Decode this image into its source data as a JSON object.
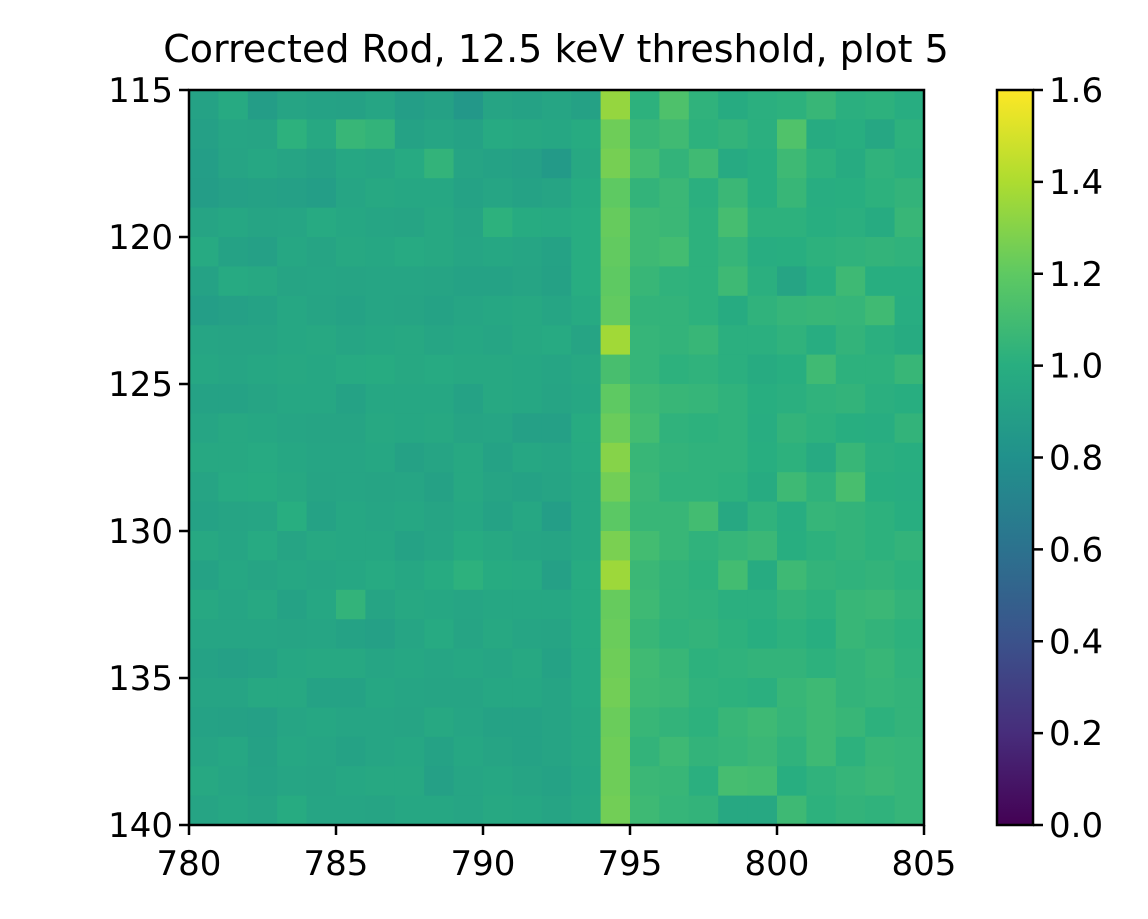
{
  "chart_data": {
    "type": "heatmap",
    "title": "Corrected Rod, 12.5 keV threshold, plot 5",
    "xlabel": "",
    "ylabel": "",
    "colormap": "viridis",
    "xlim": [
      780,
      805
    ],
    "ylim": [
      140,
      115
    ],
    "x_ticks": [
      "780",
      "785",
      "790",
      "795",
      "800",
      "805"
    ],
    "y_ticks": [
      "115",
      "120",
      "125",
      "130",
      "135",
      "140"
    ],
    "colorbar": {
      "range": [
        0.0,
        1.6
      ],
      "ticks": [
        "0.0",
        "0.2",
        "0.4",
        "0.6",
        "0.8",
        "1.0",
        "1.2",
        "1.4",
        "1.6"
      ]
    },
    "x_start": 780,
    "y_start": 115,
    "values": [
      [
        0.92,
        0.97,
        0.88,
        0.93,
        0.92,
        0.91,
        0.94,
        0.89,
        0.91,
        0.85,
        0.93,
        0.92,
        0.94,
        0.91,
        1.34,
        1.02,
        1.14,
        1.03,
        0.98,
        1.01,
        1.02,
        1.06,
        1.01,
        1.02,
        0.99
      ],
      [
        0.9,
        0.94,
        0.93,
        1.02,
        0.96,
        1.06,
        1.04,
        0.92,
        0.94,
        0.92,
        0.97,
        0.96,
        0.95,
        0.98,
        1.24,
        1.06,
        1.09,
        1.02,
        1.04,
        1.01,
        1.15,
        0.98,
        1.0,
        0.95,
        1.02
      ],
      [
        0.89,
        0.93,
        0.95,
        0.93,
        0.91,
        0.95,
        0.94,
        0.97,
        1.04,
        0.93,
        0.92,
        0.9,
        0.86,
        0.96,
        1.26,
        1.1,
        1.04,
        1.09,
        0.97,
        1.0,
        1.08,
        1.02,
        0.98,
        1.03,
        1.01
      ],
      [
        0.88,
        0.9,
        0.91,
        0.9,
        0.89,
        0.94,
        0.96,
        0.95,
        0.95,
        0.92,
        0.94,
        0.92,
        0.93,
        0.98,
        1.2,
        1.04,
        1.07,
        1.01,
        1.07,
        1.0,
        1.06,
        0.99,
        1.0,
        1.02,
        1.04
      ],
      [
        0.93,
        0.95,
        0.93,
        0.94,
        0.97,
        0.95,
        0.94,
        0.93,
        0.96,
        0.93,
        1.02,
        0.98,
        0.97,
        0.99,
        1.22,
        1.08,
        1.07,
        1.02,
        1.11,
        1.02,
        1.02,
        1.0,
        1.01,
        0.98,
        1.06
      ],
      [
        0.97,
        0.92,
        0.9,
        0.95,
        0.93,
        0.96,
        0.95,
        0.97,
        0.96,
        0.94,
        0.95,
        0.94,
        0.92,
        0.99,
        1.21,
        1.08,
        1.1,
        1.02,
        1.05,
        0.99,
        1.0,
        1.02,
        1.03,
        1.04,
        1.03
      ],
      [
        0.92,
        0.97,
        0.96,
        0.93,
        0.94,
        0.93,
        0.94,
        0.94,
        0.93,
        0.92,
        0.92,
        0.93,
        0.91,
        0.99,
        1.2,
        1.06,
        1.03,
        1.02,
        1.08,
        1.01,
        0.93,
        1.0,
        1.08,
        1.0,
        1.0
      ],
      [
        0.89,
        0.9,
        0.92,
        0.95,
        0.93,
        0.92,
        0.94,
        0.93,
        0.92,
        0.94,
        0.95,
        0.96,
        0.94,
        0.97,
        1.21,
        1.04,
        1.04,
        1.02,
        0.98,
        1.03,
        1.05,
        1.06,
        1.05,
        1.09,
        0.99
      ],
      [
        0.94,
        0.93,
        0.93,
        0.95,
        0.96,
        0.94,
        0.95,
        0.96,
        0.94,
        0.95,
        0.94,
        0.96,
        0.97,
        0.93,
        1.37,
        1.05,
        1.04,
        1.06,
        1.01,
        1.01,
        1.03,
        0.99,
        1.04,
        1.01,
        0.98
      ],
      [
        0.95,
        0.94,
        0.95,
        0.96,
        0.95,
        0.97,
        0.98,
        0.96,
        0.97,
        0.96,
        0.96,
        0.95,
        0.94,
        0.96,
        1.12,
        1.05,
        1.02,
        1.03,
        1.01,
        0.98,
        1.0,
        1.09,
        1.02,
        1.02,
        1.06
      ],
      [
        0.92,
        0.92,
        0.93,
        0.95,
        0.95,
        0.92,
        0.95,
        0.95,
        0.95,
        0.92,
        0.96,
        0.95,
        0.93,
        0.95,
        1.2,
        1.08,
        1.06,
        1.05,
        1.03,
        1.0,
        1.01,
        1.03,
        1.04,
        1.01,
        1.0
      ],
      [
        0.94,
        0.96,
        0.95,
        0.94,
        0.93,
        0.93,
        0.96,
        0.95,
        0.96,
        0.93,
        0.94,
        0.9,
        0.9,
        0.98,
        1.23,
        1.1,
        1.03,
        1.02,
        1.03,
        0.99,
        1.04,
        1.02,
        1.0,
        0.99,
        1.04
      ],
      [
        0.96,
        0.96,
        0.97,
        0.95,
        0.94,
        0.94,
        0.95,
        0.91,
        0.93,
        0.96,
        0.92,
        0.95,
        0.94,
        0.97,
        1.3,
        1.06,
        1.04,
        1.03,
        1.03,
        1.0,
        1.02,
        0.97,
        1.06,
        1.01,
        1.0
      ],
      [
        0.93,
        0.97,
        0.98,
        0.96,
        0.93,
        0.94,
        0.93,
        0.94,
        0.91,
        0.96,
        0.93,
        0.92,
        0.93,
        0.96,
        1.25,
        1.07,
        1.03,
        1.03,
        1.02,
        0.98,
        1.08,
        1.03,
        1.12,
        1.0,
        0.99
      ],
      [
        0.92,
        0.93,
        0.94,
        1.0,
        0.92,
        0.95,
        0.94,
        0.95,
        0.93,
        0.95,
        0.92,
        0.95,
        0.89,
        0.96,
        1.19,
        1.06,
        1.06,
        1.1,
        0.96,
        1.03,
        0.99,
        1.05,
        1.04,
        1.02,
        1.0
      ],
      [
        0.96,
        0.94,
        0.97,
        0.93,
        0.96,
        0.95,
        0.95,
        0.92,
        0.94,
        0.98,
        0.96,
        0.94,
        0.93,
        0.96,
        1.27,
        1.1,
        1.06,
        1.03,
        1.05,
        1.07,
        1.0,
        1.02,
        1.04,
        1.02,
        1.04
      ],
      [
        0.92,
        0.95,
        0.93,
        0.95,
        0.94,
        0.95,
        0.97,
        0.95,
        0.98,
        1.02,
        0.98,
        0.97,
        0.9,
        0.98,
        1.36,
        1.07,
        1.04,
        1.02,
        1.1,
        0.98,
        1.08,
        1.04,
        1.03,
        1.04,
        1.02
      ],
      [
        0.96,
        0.94,
        0.96,
        0.92,
        0.95,
        1.04,
        0.93,
        0.96,
        0.95,
        0.94,
        0.95,
        0.95,
        0.95,
        0.98,
        1.22,
        1.08,
        1.04,
        1.03,
        1.01,
        1.01,
        1.04,
        1.02,
        1.06,
        1.07,
        1.04
      ],
      [
        0.94,
        0.94,
        0.94,
        0.93,
        0.94,
        0.92,
        0.9,
        0.94,
        0.97,
        0.93,
        0.96,
        0.94,
        0.93,
        0.98,
        1.23,
        1.06,
        1.03,
        1.04,
        1.02,
        1.0,
        1.02,
        1.0,
        1.06,
        1.04,
        1.02
      ],
      [
        0.92,
        0.9,
        0.92,
        0.95,
        0.96,
        0.96,
        0.94,
        0.95,
        0.94,
        0.95,
        0.94,
        0.96,
        0.92,
        0.97,
        1.24,
        1.09,
        1.06,
        1.02,
        1.03,
        1.04,
        1.04,
        1.02,
        1.04,
        1.06,
        1.03
      ],
      [
        0.93,
        0.93,
        0.96,
        0.96,
        0.92,
        0.92,
        0.95,
        0.94,
        0.93,
        0.93,
        0.95,
        0.95,
        0.93,
        0.97,
        1.25,
        1.08,
        1.07,
        1.03,
        1.02,
        1.01,
        1.06,
        1.08,
        1.04,
        1.05,
        1.04
      ],
      [
        0.92,
        0.91,
        0.9,
        0.94,
        0.95,
        0.94,
        0.94,
        0.93,
        0.96,
        0.94,
        0.92,
        0.92,
        0.93,
        0.96,
        1.23,
        1.06,
        1.04,
        1.02,
        1.06,
        1.08,
        1.05,
        1.08,
        1.06,
        1.02,
        1.04
      ],
      [
        0.93,
        0.95,
        0.91,
        0.95,
        0.94,
        0.92,
        0.94,
        0.95,
        0.92,
        0.95,
        0.93,
        0.92,
        0.93,
        0.96,
        1.24,
        1.04,
        1.08,
        1.04,
        1.05,
        1.07,
        1.03,
        1.08,
        1.02,
        1.06,
        1.05
      ],
      [
        0.96,
        0.94,
        0.92,
        0.94,
        0.93,
        0.95,
        0.96,
        0.96,
        0.9,
        0.94,
        0.95,
        0.93,
        0.92,
        0.95,
        1.24,
        1.07,
        1.06,
        1.01,
        1.11,
        1.1,
        1.0,
        1.03,
        1.05,
        1.07,
        1.05
      ],
      [
        0.93,
        0.95,
        0.93,
        0.98,
        0.94,
        0.94,
        0.93,
        0.95,
        0.95,
        0.94,
        0.96,
        0.95,
        0.93,
        0.96,
        1.25,
        1.08,
        1.05,
        1.04,
        0.96,
        0.96,
        1.08,
        1.02,
        1.04,
        1.03,
        1.05
      ]
    ]
  }
}
